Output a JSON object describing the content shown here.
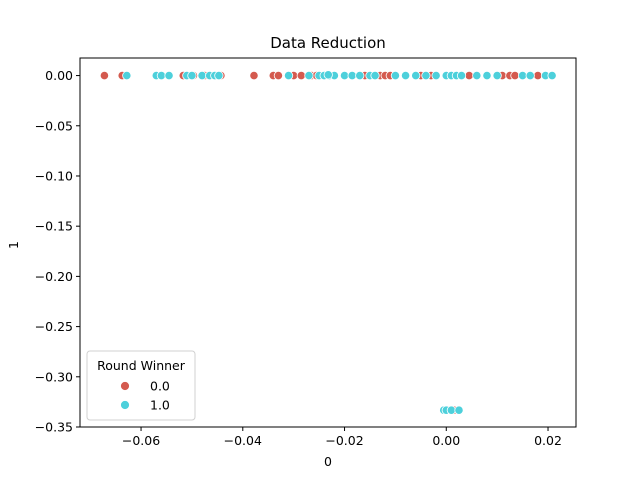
{
  "chart_data": {
    "type": "scatter",
    "title": "Data Reduction",
    "xlabel": "0",
    "ylabel": "1",
    "xlim": [
      -0.072,
      0.0255
    ],
    "ylim": [
      -0.35,
      0.0175
    ],
    "grid": false,
    "x_ticks": [
      -0.06,
      -0.04,
      -0.02,
      0.0,
      0.02
    ],
    "x_tick_labels": [
      "−0.06",
      "−0.04",
      "−0.02",
      "0.00",
      "0.02"
    ],
    "y_ticks": [
      0.0,
      -0.05,
      -0.1,
      -0.15,
      -0.2,
      -0.25,
      -0.3,
      -0.35
    ],
    "y_tick_labels": [
      "0.00",
      "−0.05",
      "−0.10",
      "−0.15",
      "−0.20",
      "−0.25",
      "−0.30",
      "−0.35"
    ],
    "legend": {
      "title": "Round Winner",
      "placement": "lower-left"
    },
    "series": [
      {
        "name": "0.0",
        "color": "#d45a4f",
        "points": [
          [
            -0.0672,
            0.0
          ],
          [
            -0.0637,
            0.0
          ],
          [
            -0.0517,
            0.0
          ],
          [
            -0.0497,
            0.0
          ],
          [
            -0.0475,
            0.0
          ],
          [
            -0.0452,
            0.0
          ],
          [
            -0.0443,
            0.0
          ],
          [
            -0.0378,
            0.0
          ],
          [
            -0.034,
            0.0
          ],
          [
            -0.033,
            0.0
          ],
          [
            -0.03,
            0.0
          ],
          [
            -0.0285,
            0.0
          ],
          [
            -0.0265,
            0.0
          ],
          [
            -0.0255,
            0.0
          ],
          [
            -0.016,
            0.0
          ],
          [
            -0.013,
            0.0
          ],
          [
            -0.012,
            0.0
          ],
          [
            -0.011,
            0.0
          ],
          [
            -0.005,
            0.0
          ],
          [
            -0.003,
            0.0
          ],
          [
            0.0045,
            0.0
          ],
          [
            0.011,
            0.0
          ],
          [
            0.0125,
            0.0
          ],
          [
            0.0135,
            0.0
          ],
          [
            0.018,
            0.0
          ],
          [
            0.0005,
            -0.3333
          ],
          [
            0.0015,
            -0.3333
          ]
        ]
      },
      {
        "name": "1.0",
        "color": "#4dd0db",
        "points": [
          [
            -0.0628,
            0.0
          ],
          [
            -0.057,
            0.0
          ],
          [
            -0.056,
            0.0
          ],
          [
            -0.0545,
            0.0
          ],
          [
            -0.051,
            0.0
          ],
          [
            -0.05,
            0.0
          ],
          [
            -0.048,
            0.0
          ],
          [
            -0.0465,
            0.0
          ],
          [
            -0.0455,
            0.0
          ],
          [
            -0.0447,
            0.0
          ],
          [
            -0.031,
            0.0
          ],
          [
            -0.027,
            0.0
          ],
          [
            -0.025,
            0.0
          ],
          [
            -0.024,
            0.0
          ],
          [
            -0.023,
            0.0
          ],
          [
            -0.022,
            0.0
          ],
          [
            -0.02,
            0.0
          ],
          [
            -0.0185,
            0.0
          ],
          [
            -0.017,
            0.0
          ],
          [
            -0.015,
            0.0
          ],
          [
            -0.014,
            0.0
          ],
          [
            -0.01,
            0.0
          ],
          [
            -0.008,
            0.0
          ],
          [
            -0.006,
            0.0
          ],
          [
            -0.004,
            0.0
          ],
          [
            -0.002,
            0.0
          ],
          [
            0.0,
            0.0
          ],
          [
            0.001,
            0.0
          ],
          [
            0.002,
            0.0
          ],
          [
            0.003,
            0.0
          ],
          [
            0.006,
            0.0
          ],
          [
            0.008,
            0.0
          ],
          [
            0.01,
            0.0
          ],
          [
            0.015,
            0.0
          ],
          [
            0.0165,
            0.0
          ],
          [
            0.0195,
            0.0
          ],
          [
            0.0208,
            0.0
          ],
          [
            -0.0232,
            0.0008
          ],
          [
            -0.0005,
            -0.3333
          ],
          [
            0.0,
            -0.3333
          ],
          [
            0.001,
            -0.3333
          ],
          [
            0.0025,
            -0.3333
          ]
        ]
      }
    ]
  }
}
